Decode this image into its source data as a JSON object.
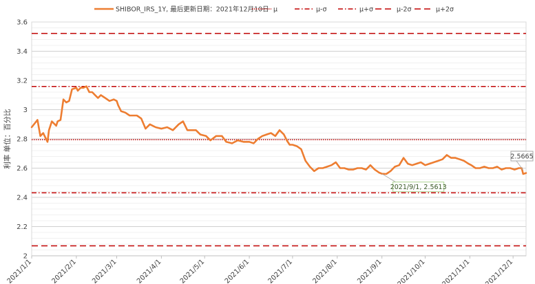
{
  "chart_data": {
    "type": "line",
    "ylabel": "利率 单位：百分比",
    "ylim": [
      2,
      3.6
    ],
    "yticks": [
      2,
      2.2,
      2.4,
      2.6,
      2.8,
      3,
      3.2,
      3.4,
      3.6
    ],
    "ytick_labels": [
      "2",
      "2.2",
      "2.4",
      "2.6",
      "2.8",
      "3",
      "3.2",
      "3.4",
      "3.6"
    ],
    "xlim": [
      "2021-01-01",
      "2021-12-10"
    ],
    "xticks": [
      "2021-01-01",
      "2021-02-01",
      "2021-03-01",
      "2021-04-01",
      "2021-05-01",
      "2021-06-01",
      "2021-07-01",
      "2021-08-01",
      "2021-09-01",
      "2021-10-01",
      "2021-11-01",
      "2021-12-01"
    ],
    "xtick_labels": [
      "2021/1/1",
      "2021/2/1",
      "2021/3/1",
      "2021/4/1",
      "2021/5/1",
      "2021/6/1",
      "2021/7/1",
      "2021/8/1",
      "2021/9/1",
      "2021/10/1",
      "2021/11/1",
      "2021/12/1"
    ],
    "grid": true,
    "legend_position": "top",
    "series": [
      {
        "name": "SHIBOR_IRS_1Y, 最后更新日期：2021年12月10日",
        "color": "#ED7D31",
        "x": [
          "2021-01-01",
          "2021-01-05",
          "2021-01-07",
          "2021-01-09",
          "2021-01-12",
          "2021-01-13",
          "2021-01-15",
          "2021-01-18",
          "2021-01-19",
          "2021-01-21",
          "2021-01-23",
          "2021-01-25",
          "2021-01-27",
          "2021-01-29",
          "2021-02-01",
          "2021-02-02",
          "2021-02-04",
          "2021-02-06",
          "2021-02-08",
          "2021-02-10",
          "2021-02-12",
          "2021-02-14",
          "2021-02-16",
          "2021-02-18",
          "2021-02-21",
          "2021-02-24",
          "2021-02-27",
          "2021-03-01",
          "2021-03-02",
          "2021-03-04",
          "2021-03-07",
          "2021-03-10",
          "2021-03-12",
          "2021-03-15",
          "2021-03-18",
          "2021-03-21",
          "2021-03-24",
          "2021-03-28",
          "2021-04-01",
          "2021-04-05",
          "2021-04-09",
          "2021-04-13",
          "2021-04-16",
          "2021-04-19",
          "2021-04-22",
          "2021-04-25",
          "2021-04-28",
          "2021-05-02",
          "2021-05-05",
          "2021-05-09",
          "2021-05-13",
          "2021-05-16",
          "2021-05-20",
          "2021-05-24",
          "2021-05-28",
          "2021-06-01",
          "2021-06-04",
          "2021-06-07",
          "2021-06-10",
          "2021-06-13",
          "2021-06-16",
          "2021-06-19",
          "2021-06-22",
          "2021-06-25",
          "2021-06-27",
          "2021-06-29",
          "2021-07-01",
          "2021-07-04",
          "2021-07-07",
          "2021-07-10",
          "2021-07-13",
          "2021-07-16",
          "2021-07-19",
          "2021-07-22",
          "2021-07-25",
          "2021-07-28",
          "2021-07-31",
          "2021-08-03",
          "2021-08-06",
          "2021-08-09",
          "2021-08-12",
          "2021-08-15",
          "2021-08-18",
          "2021-08-21",
          "2021-08-24",
          "2021-08-27",
          "2021-08-30",
          "2021-09-01",
          "2021-09-04",
          "2021-09-07",
          "2021-09-10",
          "2021-09-13",
          "2021-09-16",
          "2021-09-19",
          "2021-09-22",
          "2021-09-25",
          "2021-09-28",
          "2021-10-01",
          "2021-10-04",
          "2021-10-07",
          "2021-10-10",
          "2021-10-13",
          "2021-10-16",
          "2021-10-19",
          "2021-10-22",
          "2021-10-25",
          "2021-10-28",
          "2021-10-31",
          "2021-11-02",
          "2021-11-05",
          "2021-11-08",
          "2021-11-11",
          "2021-11-14",
          "2021-11-17",
          "2021-11-20",
          "2021-11-23",
          "2021-11-26",
          "2021-11-29",
          "2021-12-02",
          "2021-12-05",
          "2021-12-07",
          "2021-12-08",
          "2021-12-10"
        ],
        "y": [
          2.88,
          2.93,
          2.82,
          2.84,
          2.78,
          2.86,
          2.92,
          2.89,
          2.92,
          2.93,
          3.07,
          3.05,
          3.06,
          3.14,
          3.15,
          3.13,
          3.15,
          3.15,
          3.16,
          3.12,
          3.12,
          3.1,
          3.08,
          3.1,
          3.08,
          3.06,
          3.07,
          3.06,
          3.03,
          2.99,
          2.98,
          2.96,
          2.96,
          2.96,
          2.94,
          2.87,
          2.9,
          2.88,
          2.87,
          2.88,
          2.86,
          2.9,
          2.92,
          2.86,
          2.86,
          2.86,
          2.83,
          2.82,
          2.79,
          2.82,
          2.82,
          2.78,
          2.77,
          2.79,
          2.78,
          2.78,
          2.77,
          2.8,
          2.82,
          2.83,
          2.84,
          2.82,
          2.86,
          2.83,
          2.79,
          2.76,
          2.76,
          2.75,
          2.73,
          2.65,
          2.61,
          2.58,
          2.6,
          2.6,
          2.61,
          2.62,
          2.64,
          2.6,
          2.6,
          2.59,
          2.59,
          2.6,
          2.6,
          2.59,
          2.62,
          2.59,
          2.57,
          2.5613,
          2.56,
          2.58,
          2.61,
          2.62,
          2.67,
          2.63,
          2.62,
          2.63,
          2.64,
          2.62,
          2.63,
          2.64,
          2.65,
          2.66,
          2.69,
          2.67,
          2.67,
          2.66,
          2.65,
          2.63,
          2.62,
          2.6,
          2.6,
          2.61,
          2.6,
          2.6,
          2.61,
          2.59,
          2.6,
          2.6,
          2.59,
          2.6,
          2.6,
          2.56,
          2.5665
        ]
      }
    ],
    "reference_lines": [
      {
        "name": "μ",
        "value": 2.795,
        "color": "#C00000",
        "style": "dotted"
      },
      {
        "name": "μ-σ",
        "value": 2.431,
        "color": "#C00000",
        "style": "dashdot"
      },
      {
        "name": "μ+σ",
        "value": 3.159,
        "color": "#C00000",
        "style": "dashdot"
      },
      {
        "name": "μ-2σ",
        "value": 2.068,
        "color": "#C00000",
        "style": "dashed"
      },
      {
        "name": "μ+2σ",
        "value": 3.522,
        "color": "#C00000",
        "style": "dashed"
      }
    ],
    "annotations": [
      {
        "label": "2021/9/1, 2.5613",
        "x": "2021-09-01",
        "y": 2.5613,
        "color": "#375623",
        "border": "#A9D18E"
      },
      {
        "label": "2.5665",
        "x": "2021-12-10",
        "y": 2.5665,
        "color": "#404040",
        "border": "#A6A6A6"
      }
    ]
  }
}
